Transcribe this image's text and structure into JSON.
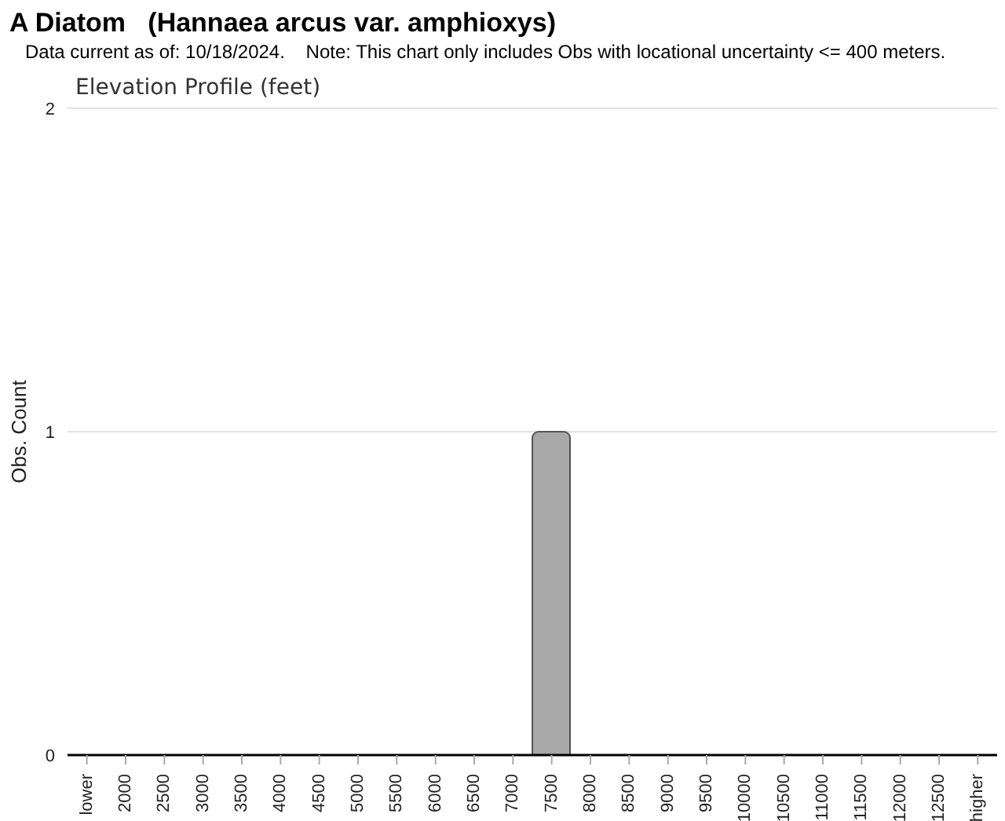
{
  "chart_data": {
    "type": "bar",
    "title": "A Diatom   (Hannaea arcus var. amphioxys)",
    "subtitle": "Data current as of: 10/18/2024.    Note: This chart only includes Obs with locational uncertainty <= 400 meters.",
    "annotations": [
      "Elevation Profile (feet)"
    ],
    "ylabel": "Obs. Count",
    "categories": [
      "lower",
      "2000",
      "2500",
      "3000",
      "3500",
      "4000",
      "4500",
      "5000",
      "5500",
      "6000",
      "6500",
      "7000",
      "7500",
      "8000",
      "8500",
      "9000",
      "9500",
      "10000",
      "10500",
      "11000",
      "11500",
      "12000",
      "12500",
      "higher"
    ],
    "values": [
      0,
      0,
      0,
      0,
      0,
      0,
      0,
      0,
      0,
      0,
      0,
      0,
      1,
      0,
      0,
      0,
      0,
      0,
      0,
      0,
      0,
      0,
      0,
      0
    ],
    "color": "#a8a8a8",
    "ylim": [
      0,
      2
    ],
    "yticks": [
      0,
      1,
      2
    ],
    "grid": "y"
  }
}
